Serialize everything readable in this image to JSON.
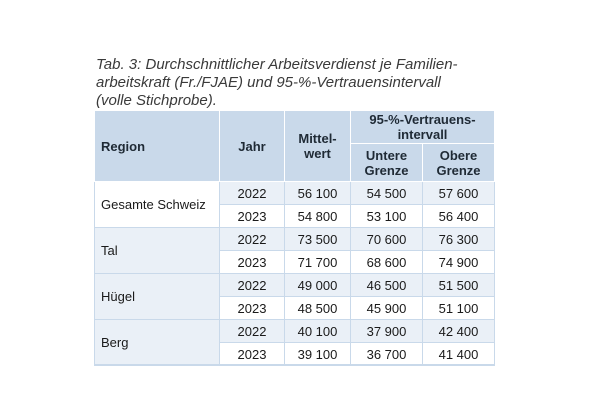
{
  "caption": {
    "line1": "Tab. 3: Durchschnittlicher Arbeitsverdienst je Familien-",
    "line2": "arbeitskraft (Fr./FJAE) und 95-%-Vertrauensintervall",
    "line3": "(volle Stichprobe)."
  },
  "table": {
    "headers": {
      "region": "Region",
      "jahr": "Jahr",
      "mittelwert": "Mittel-\nwert",
      "intervall": "95-%-Vertrauens-\nintervall",
      "untere": "Untere\nGrenze",
      "obere": "Obere\nGrenze"
    },
    "groups": [
      {
        "region": "Gesamte Schweiz",
        "rows": [
          {
            "jahr": "2022",
            "mittelwert": "56 100",
            "untere": "54 500",
            "obere": "57 600"
          },
          {
            "jahr": "2023",
            "mittelwert": "54 800",
            "untere": "53 100",
            "obere": "56 400"
          }
        ]
      },
      {
        "region": "Tal",
        "rows": [
          {
            "jahr": "2022",
            "mittelwert": "73 500",
            "untere": "70 600",
            "obere": "76 300"
          },
          {
            "jahr": "2023",
            "mittelwert": "71 700",
            "untere": "68 600",
            "obere": "74 900"
          }
        ]
      },
      {
        "region": "Hügel",
        "rows": [
          {
            "jahr": "2022",
            "mittelwert": "49 000",
            "untere": "46 500",
            "obere": "51 500"
          },
          {
            "jahr": "2023",
            "mittelwert": "48 500",
            "untere": "45 900",
            "obere": "51 100"
          }
        ]
      },
      {
        "region": "Berg",
        "rows": [
          {
            "jahr": "2022",
            "mittelwert": "40 100",
            "untere": "37 900",
            "obere": "42 400"
          },
          {
            "jahr": "2023",
            "mittelwert": "39 100",
            "untere": "36 700",
            "obere": "41 400"
          }
        ]
      }
    ]
  }
}
